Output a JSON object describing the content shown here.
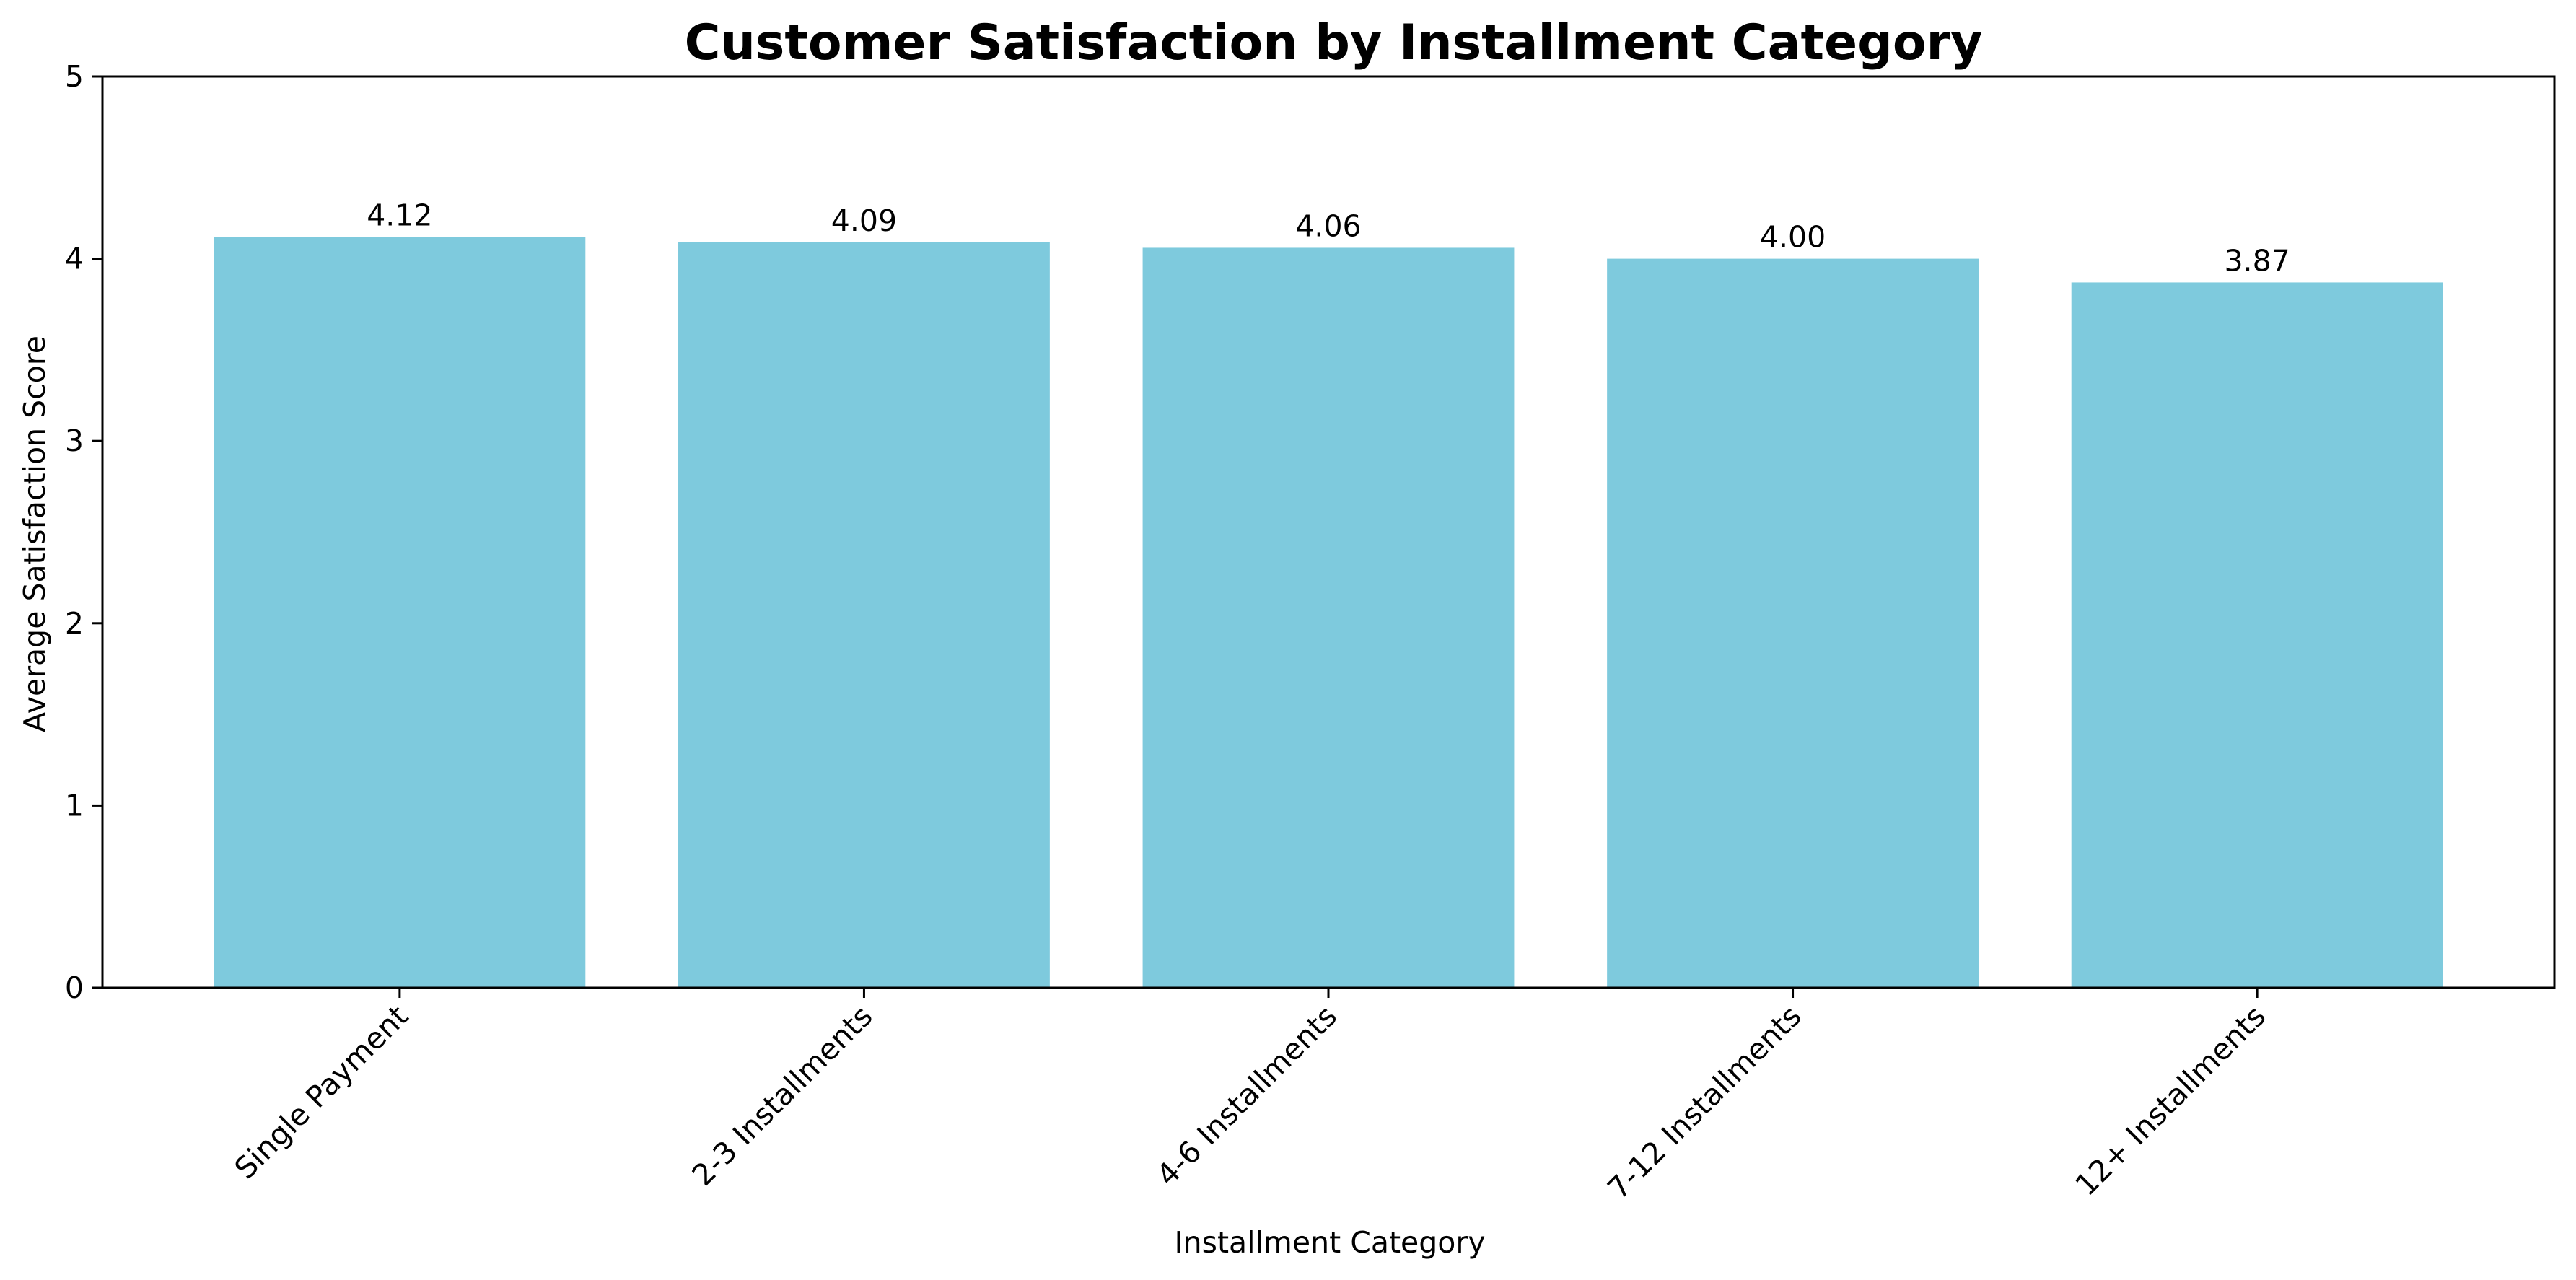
{
  "chart_data": {
    "type": "bar",
    "title": "Customer Satisfaction by Installment Category",
    "xlabel": "Installment Category",
    "ylabel": "Average Satisfaction Score",
    "categories": [
      "Single Payment",
      "2-3 Installments",
      "4-6 Installments",
      "7-12 Installments",
      "12+ Installments"
    ],
    "values": [
      4.12,
      4.09,
      4.06,
      4.0,
      3.87
    ],
    "data_labels": [
      "4.12",
      "4.09",
      "4.06",
      "4.00",
      "3.87"
    ],
    "ylim": [
      0,
      5
    ],
    "yticks": [
      0,
      1,
      2,
      3,
      4,
      5
    ],
    "ytick_labels": [
      "0",
      "1",
      "2",
      "3",
      "4",
      "5"
    ],
    "grid": false,
    "legend": "none",
    "bar_color": "#7ecadd"
  }
}
